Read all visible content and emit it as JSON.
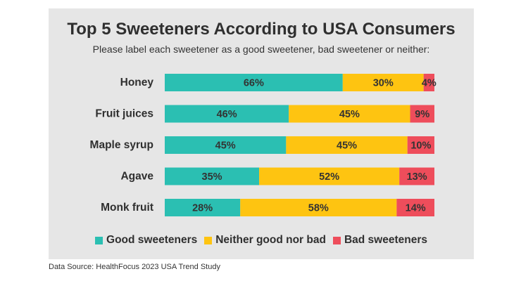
{
  "chart_data": {
    "type": "bar",
    "orientation": "horizontal",
    "stacked": true,
    "title": "Top 5 Sweeteners According to USA Consumers",
    "subtitle": "Please label each sweetener as a good sweetener, bad sweetener or neither:",
    "categories": [
      "Honey",
      "Fruit juices",
      "Maple syrup",
      "Agave",
      "Monk fruit"
    ],
    "series": [
      {
        "name": "Good sweeteners",
        "color": "#2bbfb2",
        "values": [
          66,
          46,
          45,
          35,
          28
        ],
        "labels": [
          "66%",
          "46%",
          "45%",
          "35%",
          "28%"
        ]
      },
      {
        "name": "Neither good nor bad",
        "color": "#fec411",
        "values": [
          30,
          45,
          45,
          52,
          58
        ],
        "labels": [
          "30%",
          "45%",
          "45%",
          "52%",
          "58%"
        ]
      },
      {
        "name": "Bad sweeteners",
        "color": "#ee4d5b",
        "values": [
          4,
          9,
          10,
          13,
          14
        ],
        "labels": [
          "4%",
          "9%",
          "10%",
          "13%",
          "14%"
        ]
      }
    ],
    "xlim": [
      0,
      100
    ],
    "grid": false,
    "legend_position": "bottom"
  },
  "source": "Data Source: HealthFocus 2023 USA Trend Study"
}
